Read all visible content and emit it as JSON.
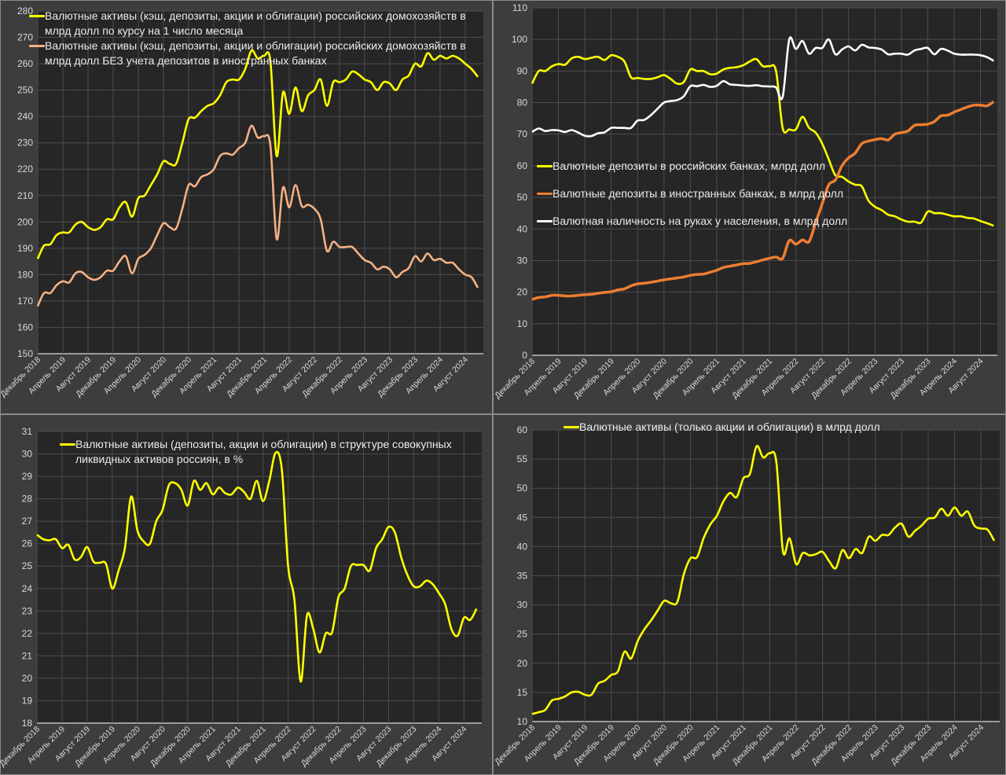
{
  "x_tick_labels": [
    "Декабрь 2018",
    "Апрель 2019",
    "Август 2019",
    "Декабрь 2019",
    "Апрель 2020",
    "Август 2020",
    "Декабрь 2020",
    "Апрель 2021",
    "Август 2021",
    "Декабрь 2021",
    "Апрель 2022",
    "Август 2022",
    "Декабрь 2022",
    "Апрель 2023",
    "Август 2023",
    "Декабрь 2023",
    "Апрель 2024",
    "Август 2024"
  ],
  "chart_data": [
    {
      "type": "line",
      "title": "",
      "xlabel": "",
      "ylabel": "",
      "x_start": "Декабрь 2018",
      "x_step": "month",
      "ylim": [
        150,
        280
      ],
      "ystep": 10,
      "grid": true,
      "legend_position": "top-left",
      "series": [
        {
          "name": "Валютные активы (кэш, депозиты, акции и облигации) российских домохозяйств в млрд долл по курсу на 1 число месяца",
          "color": "#ffff00",
          "values": [
            186,
            191,
            191.5,
            195,
            196,
            196,
            199,
            200,
            198,
            197,
            198,
            201,
            201,
            205.5,
            207.5,
            202,
            209,
            210,
            214,
            218,
            223,
            222,
            222,
            230,
            239,
            239.5,
            242,
            244,
            245,
            248,
            253,
            254,
            254,
            258,
            265,
            262,
            263,
            261,
            225,
            249,
            241,
            251,
            242,
            248,
            250,
            254,
            244,
            253,
            253,
            254,
            257,
            256,
            254,
            253,
            250,
            253,
            252.5,
            250,
            254,
            255.5,
            260,
            259,
            264,
            261.5,
            263,
            262,
            263,
            262,
            260,
            258,
            255
          ]
        },
        {
          "name": "Валютные активы (кэш, депозиты, акции и облигации) российских домохозяйств в млрд долл БЕЗ учета депозитов в иностранных банках",
          "color": "#f4b183",
          "values": [
            168,
            173,
            173,
            176,
            177.5,
            177,
            180.5,
            181,
            179,
            178,
            179,
            181.5,
            181.5,
            185,
            187,
            180.5,
            186,
            187.5,
            190,
            195,
            199.5,
            198,
            197.5,
            205,
            214,
            213.5,
            217,
            218,
            220,
            225,
            226,
            225.5,
            228,
            230,
            236.5,
            232,
            232.5,
            229,
            193.5,
            213,
            205.5,
            214,
            206,
            206.5,
            205,
            201,
            189,
            192.5,
            190.5,
            190.5,
            190.5,
            188,
            185.5,
            184.5,
            182,
            183,
            182,
            179,
            181,
            182.5,
            187,
            185,
            188,
            185.5,
            186,
            184.5,
            184.5,
            182,
            180,
            179,
            175
          ]
        }
      ]
    },
    {
      "type": "line",
      "title": "",
      "xlabel": "",
      "ylabel": "",
      "x_start": "Декабрь 2018",
      "x_step": "month",
      "ylim": [
        0,
        110
      ],
      "ystep": 10,
      "grid": true,
      "legend_position": "center-left",
      "series": [
        {
          "name": "Валютные депозиты в российских банках, млрд долл",
          "color": "#ffff00",
          "values": [
            86,
            90,
            90,
            91.5,
            92.2,
            92,
            94,
            94.5,
            93.8,
            94.2,
            94.5,
            93.5,
            95,
            94.5,
            93,
            88,
            87.8,
            87.5,
            87.5,
            88,
            88.7,
            87.5,
            86,
            86.5,
            90.5,
            90,
            90,
            89,
            89.2,
            90.5,
            91,
            91.2,
            91.8,
            93,
            93.8,
            91.5,
            91.5,
            90,
            72,
            71.5,
            71.5,
            75.5,
            72,
            70.5,
            67,
            62,
            57,
            56.5,
            55,
            54,
            53.5,
            49,
            47,
            46,
            44.5,
            44,
            43,
            42.3,
            42.3,
            42,
            45.5,
            45,
            45,
            44.5,
            44,
            44,
            43.5,
            43.3,
            42.5,
            41.8,
            41
          ]
        },
        {
          "name": "Валютные депозиты в иностранных банках, в млрд долл",
          "color": "#ed7d31",
          "values": [
            17.7,
            18.3,
            18.5,
            19,
            19,
            18.8,
            18.8,
            19,
            19.2,
            19.3,
            19.6,
            19.9,
            20.1,
            20.7,
            21,
            22,
            22.6,
            22.8,
            23.1,
            23.5,
            23.9,
            24.2,
            24.5,
            24.8,
            25.3,
            25.6,
            25.7,
            26.3,
            26.9,
            27.8,
            28.2,
            28.6,
            29,
            29.1,
            29.6,
            30.2,
            30.7,
            31.1,
            30.7,
            36.3,
            35.2,
            36.5,
            36,
            42,
            48,
            54,
            55.5,
            60,
            62.5,
            64,
            67,
            67.8,
            68.3,
            68.6,
            68.2,
            70,
            70.5,
            71,
            72.8,
            73,
            73.2,
            74,
            75.8,
            76,
            77,
            77.8,
            78.6,
            79.2,
            79.2,
            79,
            80.3
          ]
        },
        {
          "name": "Валютная наличность на руках у населения, в млрд долл",
          "color": "#ffffff",
          "values": [
            70.7,
            71.8,
            71,
            71.3,
            71.2,
            70.7,
            71.3,
            70.5,
            69.5,
            69.4,
            70.3,
            70.6,
            72,
            72,
            72,
            72,
            74.3,
            74.5,
            76,
            78,
            80,
            80.5,
            80.8,
            82,
            85.2,
            85.2,
            85.6,
            85,
            85.3,
            86.8,
            85.8,
            85.6,
            85.4,
            85.3,
            85.5,
            85.2,
            85.1,
            84.8,
            81.8,
            100,
            97,
            99.5,
            95.5,
            97.3,
            97.3,
            100,
            95.3,
            96.8,
            97.8,
            96.5,
            98.3,
            97.5,
            97.3,
            96.8,
            95.3,
            95.5,
            95.5,
            95.2,
            96.5,
            97,
            97.3,
            95.3,
            97,
            96.5,
            95.5,
            95.2,
            95.2,
            95.2,
            95,
            94.4,
            93.2
          ]
        }
      ]
    },
    {
      "type": "line",
      "title": "",
      "xlabel": "",
      "ylabel": "",
      "x_start": "Декабрь 2018",
      "x_step": "month",
      "ylim": [
        18,
        31
      ],
      "ystep": 1,
      "grid": true,
      "legend_position": "top-left",
      "series": [
        {
          "name": "Валютные активы (депозиты, акции и облигации) в структуре совокупных ликвидных активов россиян, в %",
          "color": "#ffff00",
          "values": [
            26.4,
            26.2,
            26.15,
            26.2,
            25.8,
            25.95,
            25.3,
            25.4,
            25.85,
            25.2,
            25.15,
            25.1,
            24.0,
            24.8,
            25.8,
            28.1,
            26.6,
            26.1,
            26.0,
            27.0,
            27.5,
            28.6,
            28.7,
            28.4,
            27.7,
            28.8,
            28.4,
            28.7,
            28.2,
            28.5,
            28.25,
            28.2,
            28.5,
            28.3,
            28.0,
            28.8,
            27.9,
            28.8,
            30.05,
            29.3,
            25.0,
            23.5,
            19.85,
            22.8,
            22.2,
            21.15,
            22.0,
            22.05,
            23.6,
            24.0,
            25.0,
            25.05,
            25.05,
            24.8,
            25.8,
            26.2,
            26.75,
            26.5,
            25.4,
            24.6,
            24.1,
            24.1,
            24.35,
            24.2,
            23.8,
            23.3,
            22.2,
            21.9,
            22.7,
            22.6,
            23.1
          ]
        }
      ]
    },
    {
      "type": "line",
      "title": "",
      "xlabel": "",
      "ylabel": "",
      "x_start": "Декабрь 2018",
      "x_step": "month",
      "ylim": [
        10,
        60
      ],
      "ystep": 5,
      "grid": true,
      "legend_position": "top",
      "series": [
        {
          "name": "Валютные активы (только акции и облигации) в млрд долл",
          "color": "#ffff00",
          "values": [
            11.3,
            11.6,
            12.0,
            13.6,
            13.9,
            14.3,
            15.0,
            15.1,
            14.6,
            14.6,
            16.5,
            17.0,
            18.0,
            18.6,
            22.0,
            20.8,
            23.8,
            25.8,
            27.3,
            29.0,
            30.7,
            30.3,
            30.5,
            35.3,
            38.0,
            38.2,
            41.5,
            43.8,
            45.3,
            47.8,
            49.2,
            48.5,
            51.7,
            52.5,
            57.2,
            55.3,
            56.0,
            54.5,
            39.2,
            41.4,
            37.0,
            38.9,
            38.5,
            38.7,
            39.1,
            37.5,
            36.3,
            39.4,
            38.0,
            39.6,
            38.9,
            41.7,
            41.0,
            42.0,
            42.0,
            43.3,
            43.9,
            41.7,
            42.7,
            43.6,
            44.8,
            45.0,
            46.5,
            45.3,
            46.7,
            45.3,
            46.0,
            43.6,
            43.1,
            42.9,
            41.0
          ]
        }
      ]
    }
  ]
}
